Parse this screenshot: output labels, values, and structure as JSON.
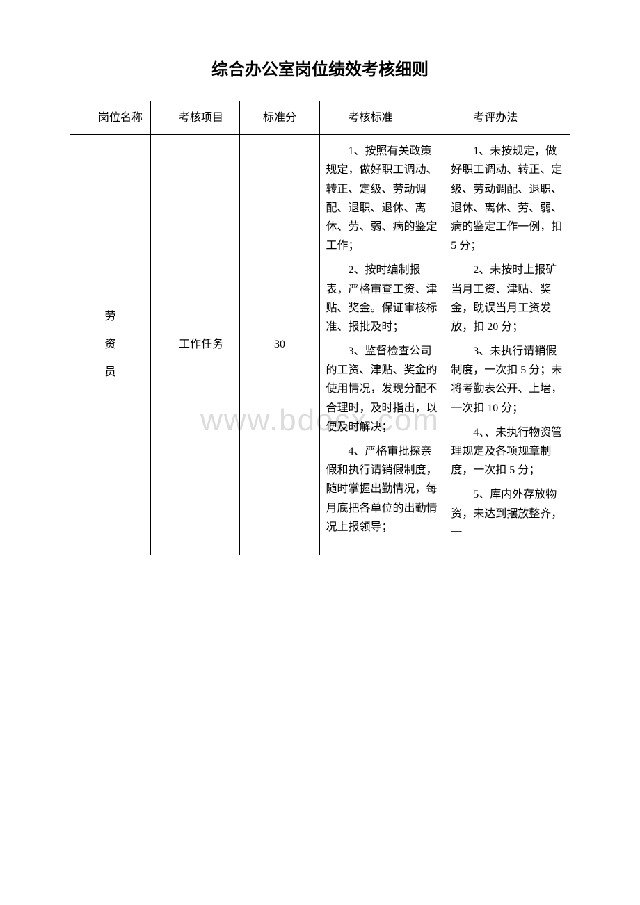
{
  "title": "综合办公室岗位绩效考核细则",
  "watermark": "www.bdocx.com",
  "headers": {
    "position": "岗位名称",
    "item": "考核项目",
    "score": "标准分",
    "criteria": "考核标准",
    "method": "考评办法"
  },
  "row": {
    "position_c1": "劳",
    "position_c2": "资",
    "position_c3": "员",
    "item": "工作任务",
    "score": "30",
    "criteria": {
      "p1": "1、按照有关政策规定，做好职工调动、转正、定级、劳动调配、退职、退休、离休、劳、弱、病的鉴定工作；",
      "p2": "2、按时编制报表，严格审查工资、津贴、奖金。保证审核标准、报批及时；",
      "p3": "3、监督检查公司的工资、津贴、奖金的使用情况，发现分配不合理时，及时指出，以便及时解决；",
      "p4": "4、严格审批探亲假和执行请销假制度，随时掌握出勤情况，每月底把各单位的出勤情况上报领导；"
    },
    "method": {
      "p1": "1、未按规定，做好职工调动、转正、定级、劳动调配、退职、退休、离休、劳、弱、病的鉴定工作一例，扣 5 分；",
      "p2": "2、未按时上报矿当月工资、津贴、奖金，耽误当月工资发放，扣 20 分；",
      "p3": "3、未执行请销假制度，一次扣 5 分；未将考勤表公开、上墙，一次扣 10 分；",
      "p4": "4、、未执行物资管理规定及各项规章制度，一次扣 5 分；",
      "p5": "5、库内外存放物资，未达到摆放整齐，一"
    }
  }
}
